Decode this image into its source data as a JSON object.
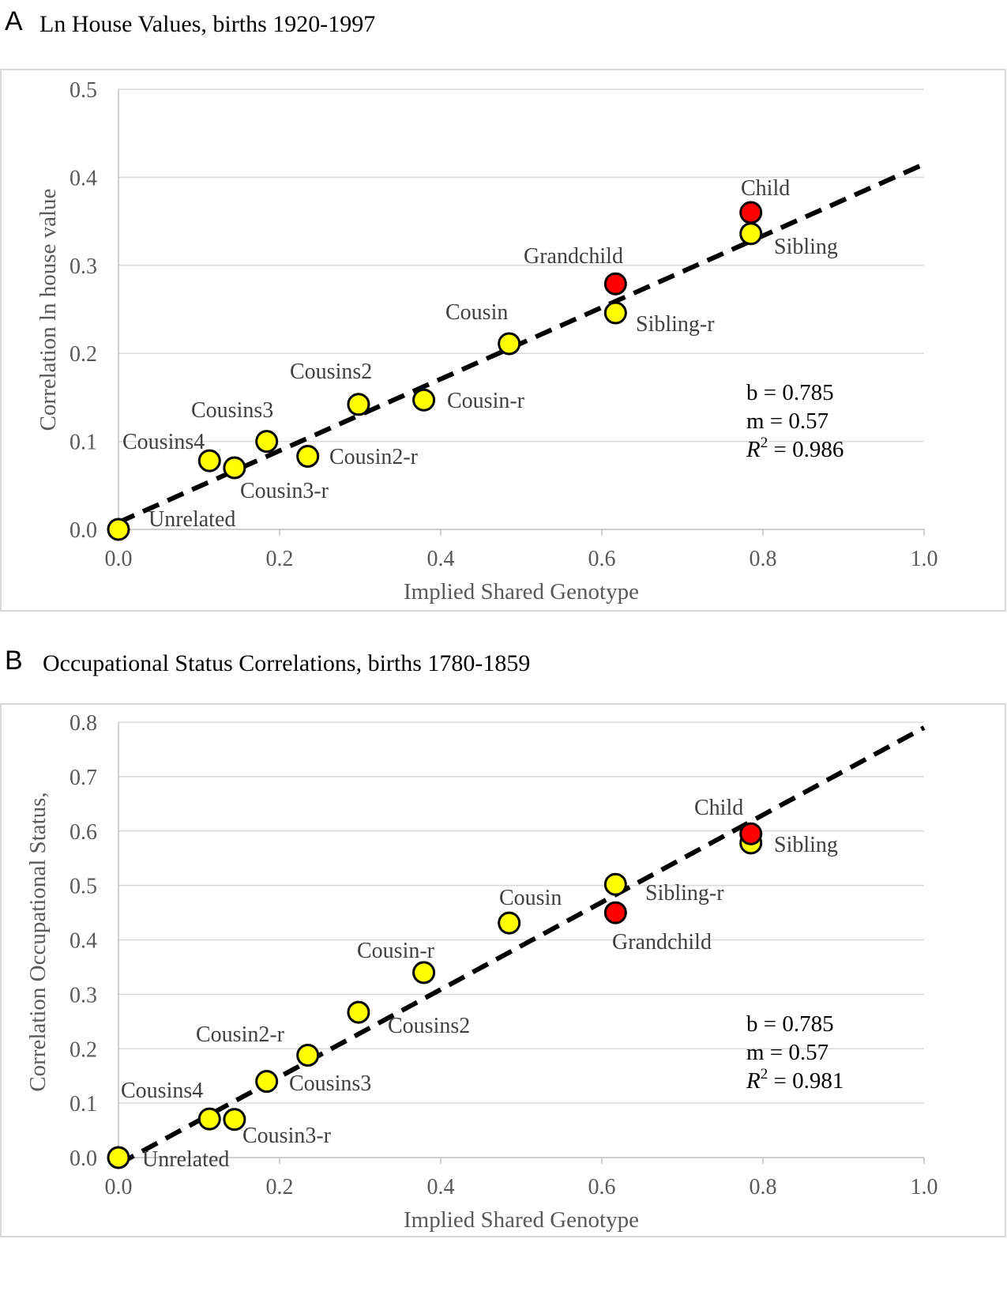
{
  "panels": [
    {
      "letter": "A",
      "title": "Ln House Values, births 1920-1997"
    },
    {
      "letter": "B",
      "title": "Occupational Status Correlations, births 1780-1859"
    }
  ],
  "colors": {
    "point_fill": "#ffff00",
    "highlight_fill": "#ff0000",
    "point_stroke": "#000000",
    "gridline": "#d9d9d9",
    "trendline": "#000000"
  },
  "chart_data": [
    {
      "type": "scatter",
      "title": "Ln House Values, births 1920-1997",
      "xlabel": "Implied Shared Genotype",
      "ylabel": "Correlation ln house value",
      "xlim": [
        0.0,
        1.0
      ],
      "ylim": [
        0.0,
        0.5
      ],
      "xticks": [
        "0.0",
        "0.2",
        "0.4",
        "0.6",
        "0.8",
        "1.0"
      ],
      "yticks": [
        "0.0",
        "0.1",
        "0.2",
        "0.3",
        "0.4",
        "0.5"
      ],
      "grid": "horizontal",
      "trendline": {
        "style": "dashed",
        "x": [
          0.0,
          1.0
        ],
        "y": [
          0.008,
          0.415
        ]
      },
      "points": [
        {
          "label": "Unrelated",
          "x": 0.0,
          "y": 0.0,
          "color": "yellow"
        },
        {
          "label": "Cousins4",
          "x": 0.113,
          "y": 0.078,
          "color": "yellow"
        },
        {
          "label": "Cousin3-r",
          "x": 0.144,
          "y": 0.07,
          "color": "yellow"
        },
        {
          "label": "Cousins3",
          "x": 0.184,
          "y": 0.1,
          "color": "yellow"
        },
        {
          "label": "Cousin2-r",
          "x": 0.235,
          "y": 0.083,
          "color": "yellow"
        },
        {
          "label": "Cousins2",
          "x": 0.298,
          "y": 0.142,
          "color": "yellow"
        },
        {
          "label": "Cousin-r",
          "x": 0.379,
          "y": 0.147,
          "color": "yellow"
        },
        {
          "label": "Cousin",
          "x": 0.485,
          "y": 0.211,
          "color": "yellow"
        },
        {
          "label": "Sibling-r",
          "x": 0.617,
          "y": 0.246,
          "color": "yellow"
        },
        {
          "label": "Grandchild",
          "x": 0.617,
          "y": 0.279,
          "color": "red"
        },
        {
          "label": "Sibling",
          "x": 0.785,
          "y": 0.336,
          "color": "yellow"
        },
        {
          "label": "Child",
          "x": 0.785,
          "y": 0.36,
          "color": "red"
        }
      ],
      "stats": {
        "b": "b = 0.785",
        "m": "m = 0.57",
        "r2_prefix": "R",
        "r2_sup": "2",
        "r2_value": " = 0.986"
      }
    },
    {
      "type": "scatter",
      "title": "Occupational Status Correlations, births 1780-1859",
      "xlabel": "Implied Shared Genotype",
      "ylabel": "Correlation Occupational Status,",
      "xlim": [
        0.0,
        1.0
      ],
      "ylim": [
        0.0,
        0.8
      ],
      "xticks": [
        "0.0",
        "0.2",
        "0.4",
        "0.6",
        "0.8",
        "1.0"
      ],
      "yticks": [
        "0.0",
        "0.1",
        "0.2",
        "0.3",
        "0.4",
        "0.5",
        "0.6",
        "0.7",
        "0.8"
      ],
      "grid": "horizontal",
      "trendline": {
        "style": "dashed",
        "x": [
          0.0,
          1.0
        ],
        "y": [
          -0.012,
          0.79
        ]
      },
      "points": [
        {
          "label": "Unrelated",
          "x": 0.0,
          "y": 0.0,
          "color": "yellow"
        },
        {
          "label": "Cousins4",
          "x": 0.113,
          "y": 0.071,
          "color": "yellow"
        },
        {
          "label": "Cousin3-r",
          "x": 0.144,
          "y": 0.07,
          "color": "yellow"
        },
        {
          "label": "Cousins3",
          "x": 0.184,
          "y": 0.14,
          "color": "yellow"
        },
        {
          "label": "Cousin2-r",
          "x": 0.235,
          "y": 0.188,
          "color": "yellow"
        },
        {
          "label": "Cousins2",
          "x": 0.298,
          "y": 0.267,
          "color": "yellow"
        },
        {
          "label": "Cousin-r",
          "x": 0.379,
          "y": 0.34,
          "color": "yellow"
        },
        {
          "label": "Cousin",
          "x": 0.485,
          "y": 0.431,
          "color": "yellow"
        },
        {
          "label": "Sibling-r",
          "x": 0.617,
          "y": 0.502,
          "color": "yellow"
        },
        {
          "label": "Grandchild",
          "x": 0.617,
          "y": 0.45,
          "color": "red"
        },
        {
          "label": "Sibling",
          "x": 0.785,
          "y": 0.578,
          "color": "yellow"
        },
        {
          "label": "Child",
          "x": 0.785,
          "y": 0.595,
          "color": "red"
        }
      ],
      "stats": {
        "b": "b = 0.785",
        "m": "m = 0.57",
        "r2_prefix": "R",
        "r2_sup": "2",
        "r2_value": " = 0.981"
      }
    }
  ]
}
